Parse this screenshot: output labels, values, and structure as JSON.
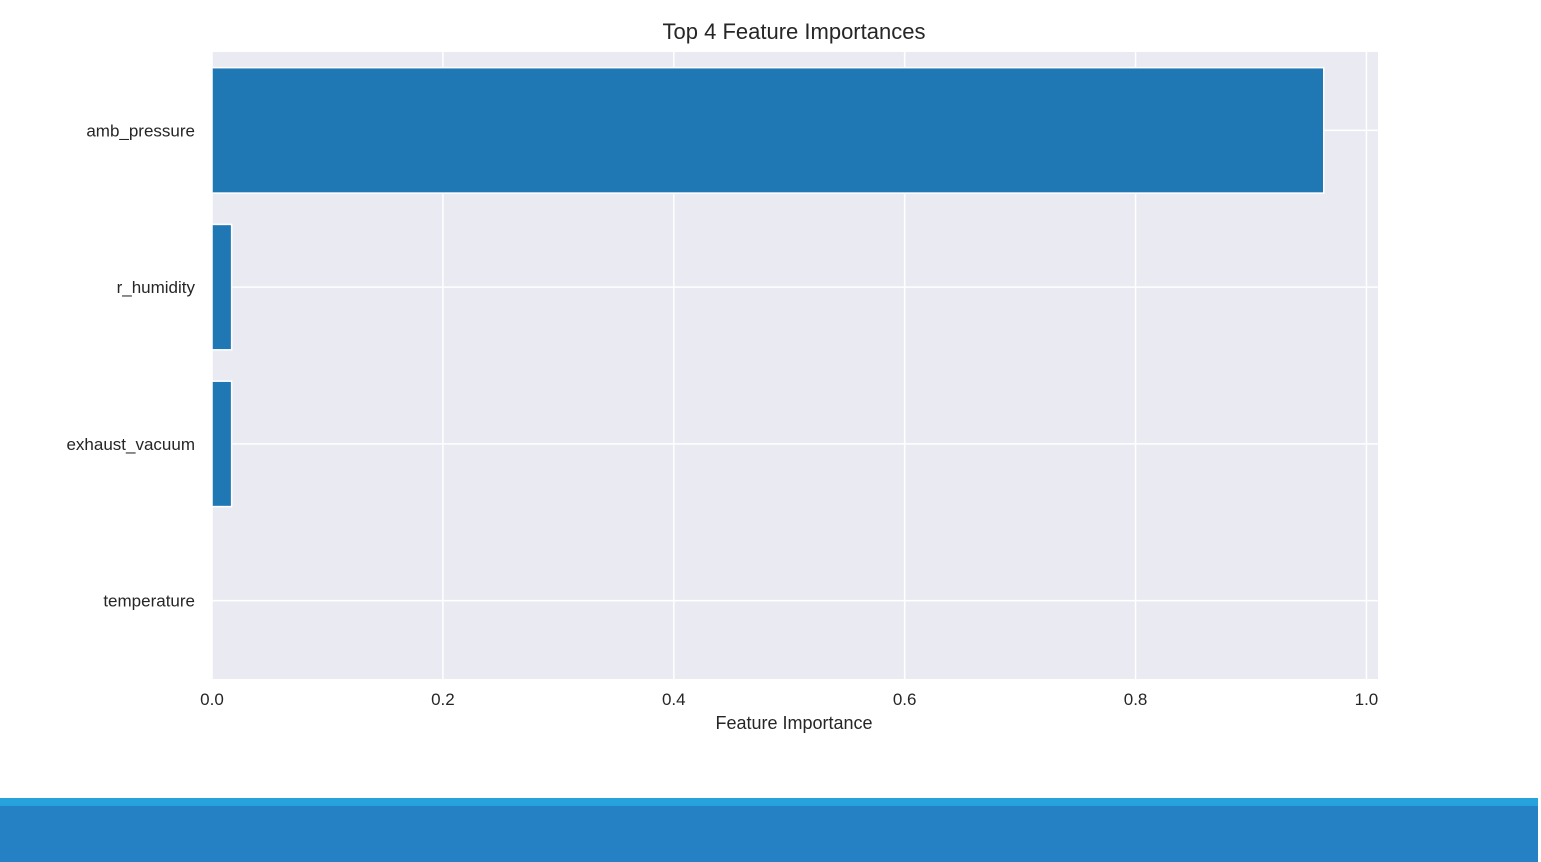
{
  "colors": {
    "plot_background": "#eaeaf2",
    "grid": "#ffffff",
    "bar": "#1f77b4",
    "footer": "#2580c4",
    "footer_stripe": "#26a3dd"
  },
  "chart_data": {
    "type": "bar",
    "orientation": "horizontal",
    "title": "Top 4 Feature Importances",
    "xlabel": "Feature Importance",
    "ylabel": "",
    "categories": [
      "amb_pressure",
      "r_humidity",
      "exhaust_vacuum",
      "temperature"
    ],
    "values": [
      0.963,
      0.017,
      0.017,
      0.0
    ],
    "xlim": [
      0.0,
      1.01
    ],
    "xticks": [
      "0.0",
      "0.2",
      "0.4",
      "0.6",
      "0.8",
      "1.0"
    ],
    "grid": true,
    "legend": "none"
  }
}
